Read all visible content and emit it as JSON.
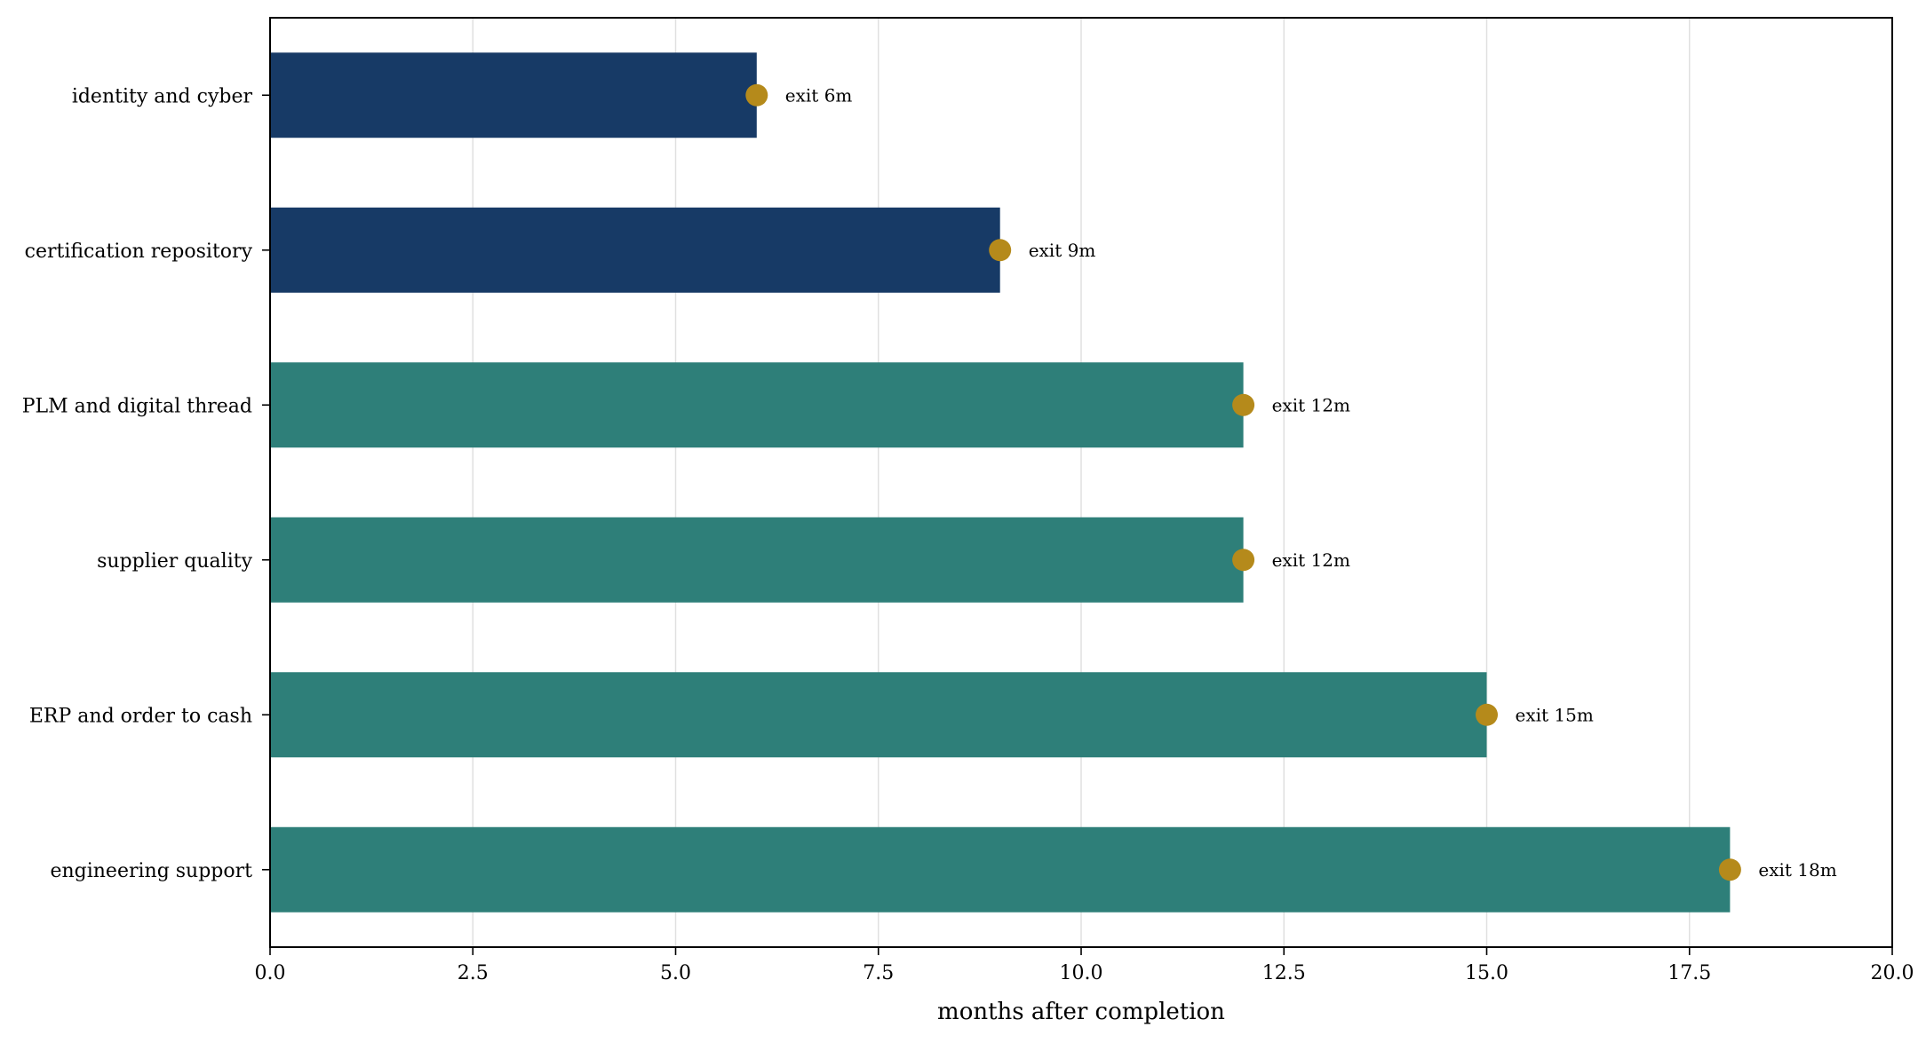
{
  "chart_data": {
    "type": "bar",
    "orientation": "horizontal",
    "categories": [
      "identity and cyber",
      "certification repository",
      "PLM and digital thread",
      "supplier quality",
      "ERP and order to cash",
      "engineering support"
    ],
    "values": [
      6,
      9,
      12,
      12,
      15,
      18
    ],
    "bar_colors": [
      "#173a66",
      "#173a66",
      "#2e7f79",
      "#2e7f79",
      "#2e7f79",
      "#2e7f79"
    ],
    "marker_color": "#b58a1b",
    "data_labels": [
      "exit 6m",
      "exit 9m",
      "exit 12m",
      "exit 12m",
      "exit 15m",
      "exit 18m"
    ],
    "title": "",
    "xlabel": "months after completion",
    "ylabel": "",
    "xlim": [
      0,
      20
    ],
    "xticks": [
      0,
      2.5,
      5,
      7.5,
      10,
      12.5,
      15,
      17.5,
      20
    ],
    "xtick_labels": [
      "0.0",
      "2.5",
      "5.0",
      "7.5",
      "10.0",
      "12.5",
      "15.0",
      "17.5",
      "20.0"
    ],
    "grid": "x",
    "legend": "none"
  }
}
